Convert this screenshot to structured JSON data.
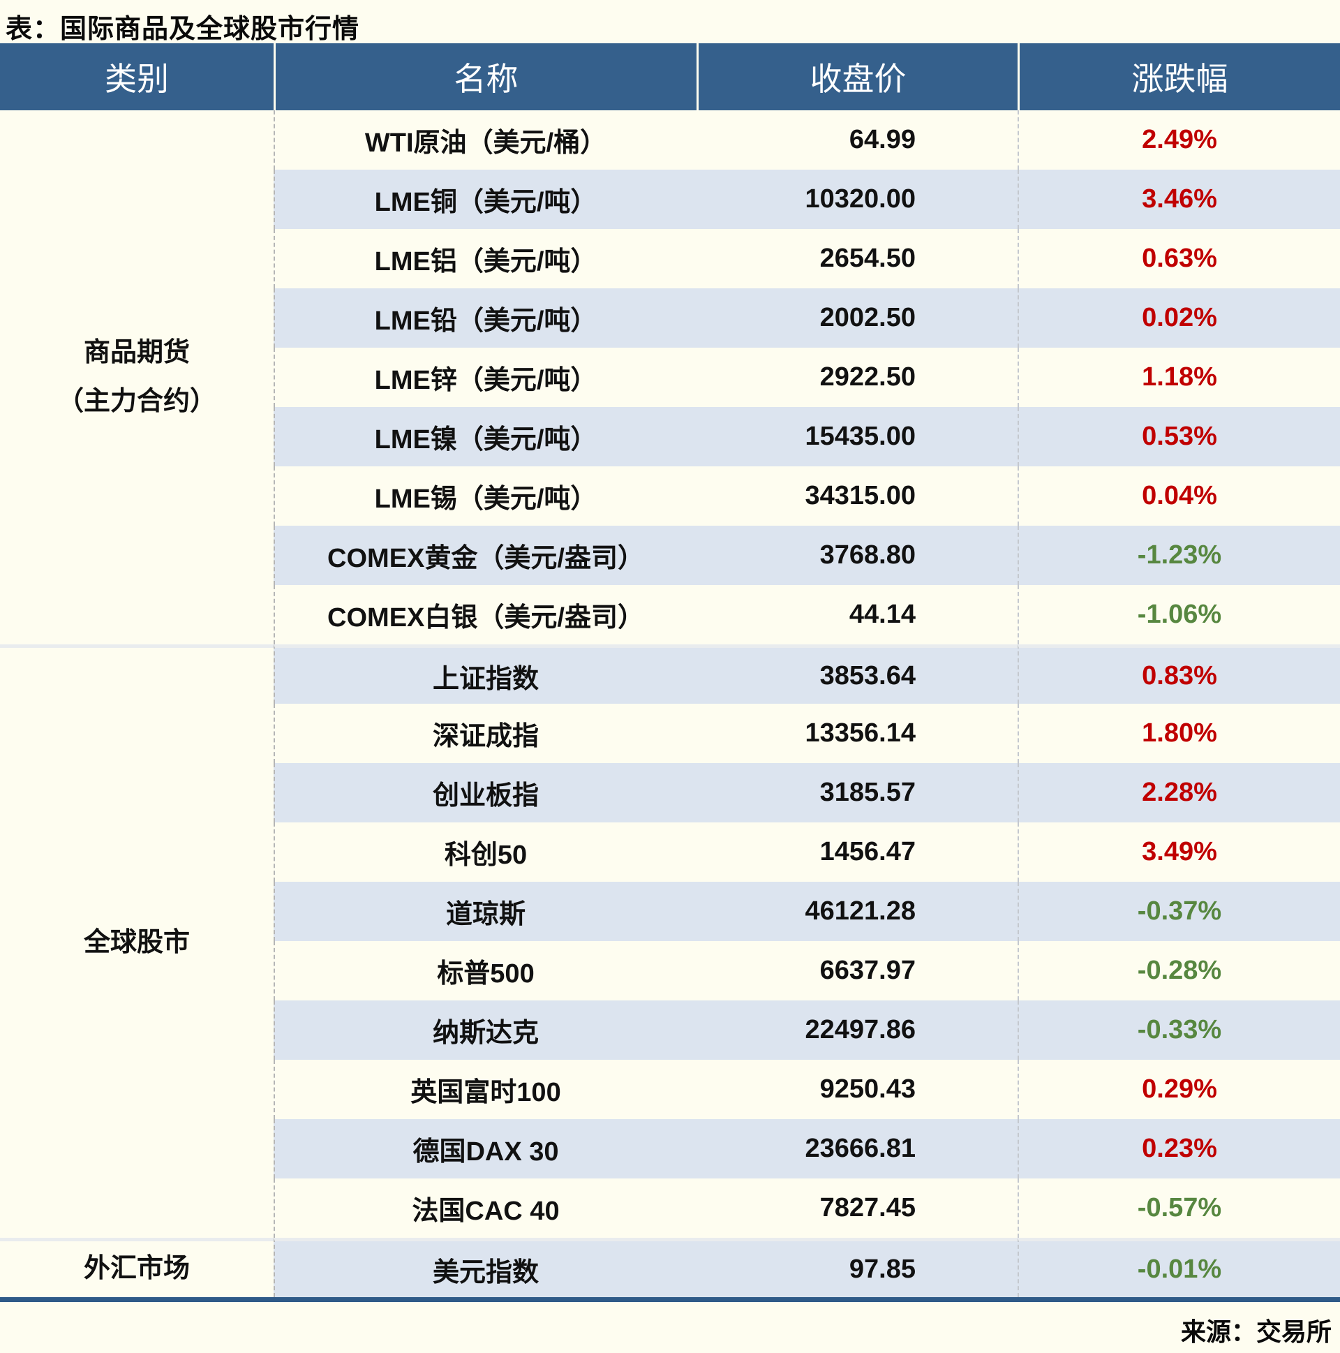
{
  "title": "表：国际商品及全球股市行情",
  "source": "来源：交易所",
  "colors": {
    "up": "#c00000",
    "down": "#578740",
    "header_bg": "#35608c",
    "row_alt": "#dce4ef",
    "page_bg": "#fefdf0",
    "bottom_border": "#2f5a88"
  },
  "chart_data": {
    "type": "table",
    "title": "表：国际商品及全球股市行情",
    "source": "来源：交易所",
    "columns": [
      "类别",
      "名称",
      "收盘价",
      "涨跌幅"
    ],
    "sections": [
      {
        "category": "商品期货（主力合约）",
        "category_lines": [
          "商品期货",
          "（主力合约）"
        ],
        "rows": [
          {
            "name": "WTI原油（美元/桶）",
            "close": "64.99",
            "change": "2.49%"
          },
          {
            "name": "LME铜（美元/吨）",
            "close": "10320.00",
            "change": "3.46%"
          },
          {
            "name": "LME铝（美元/吨）",
            "close": "2654.50",
            "change": "0.63%"
          },
          {
            "name": "LME铅（美元/吨）",
            "close": "2002.50",
            "change": "0.02%"
          },
          {
            "name": "LME锌（美元/吨）",
            "close": "2922.50",
            "change": "1.18%"
          },
          {
            "name": "LME镍（美元/吨）",
            "close": "15435.00",
            "change": "0.53%"
          },
          {
            "name": "LME锡（美元/吨）",
            "close": "34315.00",
            "change": "0.04%"
          },
          {
            "name": "COMEX黄金（美元/盎司）",
            "close": "3768.80",
            "change": "-1.23%"
          },
          {
            "name": "COMEX白银（美元/盎司）",
            "close": "44.14",
            "change": "-1.06%"
          }
        ]
      },
      {
        "category": "全球股市",
        "category_lines": [
          "全球股市"
        ],
        "rows": [
          {
            "name": "上证指数",
            "close": "3853.64",
            "change": "0.83%"
          },
          {
            "name": "深证成指",
            "close": "13356.14",
            "change": "1.80%"
          },
          {
            "name": "创业板指",
            "close": "3185.57",
            "change": "2.28%"
          },
          {
            "name": "科创50",
            "close": "1456.47",
            "change": "3.49%"
          },
          {
            "name": "道琼斯",
            "close": "46121.28",
            "change": "-0.37%"
          },
          {
            "name": "标普500",
            "close": "6637.97",
            "change": "-0.28%"
          },
          {
            "name": "纳斯达克",
            "close": "22497.86",
            "change": "-0.33%"
          },
          {
            "name": "英国富时100",
            "close": "9250.43",
            "change": "0.29%"
          },
          {
            "name": "德国DAX 30",
            "close": "23666.81",
            "change": "0.23%"
          },
          {
            "name": "法国CAC 40",
            "close": "7827.45",
            "change": "-0.57%"
          }
        ]
      },
      {
        "category": "外汇市场",
        "category_lines": [
          "外汇市场"
        ],
        "rows": [
          {
            "name": "美元指数",
            "close": "97.85",
            "change": "-0.01%"
          }
        ]
      }
    ]
  }
}
